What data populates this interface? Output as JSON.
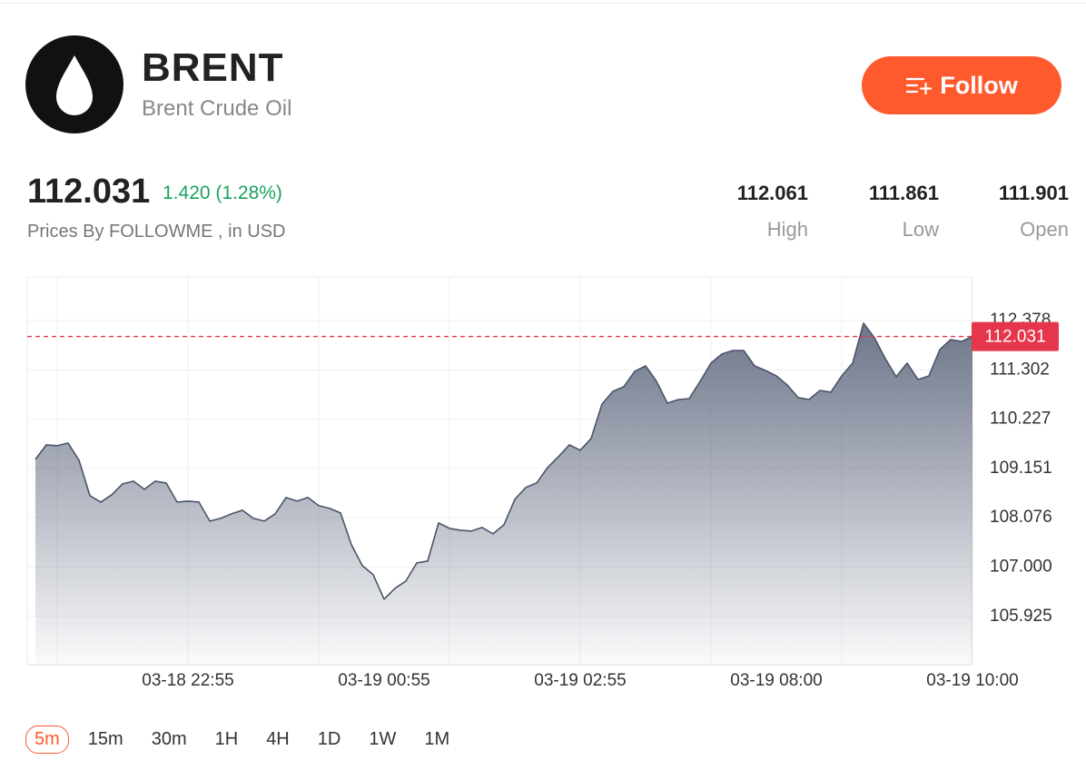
{
  "header": {
    "symbol": "BRENT",
    "name": "Brent Crude Oil",
    "follow": "Follow"
  },
  "quote": {
    "price": "112.031",
    "change": "1.420 (1.28%)",
    "source": "Prices By FOLLOWME , in USD",
    "stats": [
      {
        "value": "112.061",
        "label": "High"
      },
      {
        "value": "111.861",
        "label": "Low"
      },
      {
        "value": "111.901",
        "label": "Open"
      }
    ]
  },
  "chart_data": {
    "type": "area",
    "x": [
      null,
      null,
      null,
      null,
      null,
      null,
      null,
      null,
      null,
      null,
      null,
      null,
      null,
      null,
      "03-18 22:55",
      null,
      null,
      null,
      null,
      null,
      null,
      null,
      null,
      null,
      null,
      null,
      null,
      null,
      null,
      null,
      null,
      null,
      "03-19 00:55",
      null,
      null,
      null,
      null,
      null,
      null,
      null,
      null,
      null,
      null,
      null,
      null,
      null,
      null,
      null,
      null,
      null,
      "03-19 02:55",
      null,
      null,
      null,
      null,
      null,
      null,
      null,
      null,
      null,
      null,
      null,
      null,
      null,
      null,
      null,
      null,
      null,
      "03-19 08:00",
      null,
      null,
      null,
      null,
      null,
      null,
      null,
      null,
      null,
      null,
      null,
      null,
      null,
      null,
      null,
      null,
      null,
      "03-19 10:00"
    ],
    "values": [
      109.349,
      109.666,
      109.646,
      109.706,
      109.329,
      108.557,
      108.418,
      108.577,
      108.814,
      108.874,
      108.695,
      108.874,
      108.834,
      108.418,
      108.438,
      108.418,
      108.002,
      108.062,
      108.161,
      108.24,
      108.062,
      108.002,
      108.161,
      108.517,
      108.438,
      108.517,
      108.339,
      108.28,
      108.181,
      107.487,
      107.032,
      106.834,
      106.299,
      106.537,
      106.695,
      107.091,
      107.131,
      107.963,
      107.844,
      107.804,
      107.784,
      107.864,
      107.725,
      107.923,
      108.478,
      108.735,
      108.834,
      109.171,
      109.408,
      109.666,
      109.547,
      109.805,
      110.557,
      110.834,
      110.934,
      111.27,
      111.389,
      111.052,
      110.577,
      110.656,
      110.676,
      111.052,
      111.449,
      111.647,
      111.726,
      111.726,
      111.389,
      111.29,
      111.171,
      110.973,
      110.696,
      110.656,
      110.854,
      110.815,
      111.171,
      111.449,
      112.32,
      112.003,
      111.547,
      111.151,
      111.449,
      111.092,
      111.171,
      111.745,
      111.963,
      111.924,
      112.031
    ],
    "color": "#4a5468",
    "ylim": [
      104.87,
      113.33
    ],
    "yticks": [
      112.378,
      111.302,
      110.227,
      109.151,
      108.076,
      {
        "value": 107,
        "label": "107.000"
      },
      105.925
    ],
    "grid": true,
    "last_price": 112.031,
    "last_price_color": "#e5364b"
  },
  "timeframes": {
    "options": [
      "5m",
      "15m",
      "30m",
      "1H",
      "4H",
      "1D",
      "1W",
      "1M"
    ],
    "selected": 0
  }
}
